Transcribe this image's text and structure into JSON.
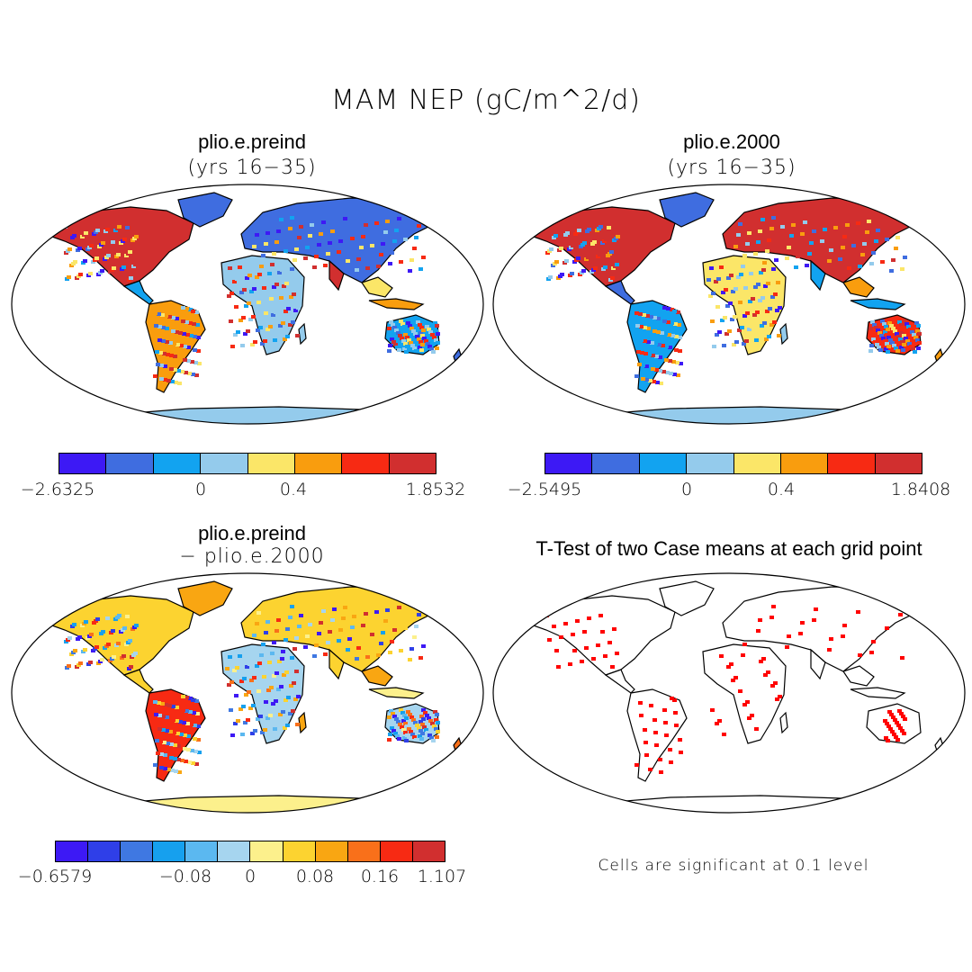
{
  "title": "MAM NEP (gC/m^2/d)",
  "panels": {
    "p1": {
      "title": "plio.e.preind",
      "subtitle": "(yrs 16−35)"
    },
    "p2": {
      "title": "plio.e.2000",
      "subtitle": "(yrs 16−35)"
    },
    "p3": {
      "title": "plio.e.preind",
      "subtitle": "− plio.e.2000"
    },
    "p4": {
      "title": "T-Test of two Case means at each grid point",
      "note": "Cells are significant at 0.1 level"
    }
  },
  "colorbars": {
    "cb1": {
      "colors": [
        "#3d19f5",
        "#3f6de0",
        "#12a3f0",
        "#94cbec",
        "#fbe668",
        "#f99d0e",
        "#f72a13",
        "#d12f2f"
      ],
      "labels": [
        "−2.6325",
        "0",
        "0.4",
        "1.8532"
      ]
    },
    "cb2": {
      "colors": [
        "#3d19f5",
        "#3f6de0",
        "#12a3f0",
        "#94cbec",
        "#fbe668",
        "#f99d0e",
        "#f72a13",
        "#d12f2f"
      ],
      "labels": [
        "−2.5495",
        "0",
        "0.4",
        "1.8408"
      ]
    },
    "cb3": {
      "colors": [
        "#3d19f5",
        "#2f3fe8",
        "#3f78e2",
        "#16a0ee",
        "#5bb8f0",
        "#a6d5ef",
        "#fcf08c",
        "#fcd330",
        "#f9a612",
        "#f9701a",
        "#f72a13",
        "#d12f2f"
      ],
      "labels": [
        "−0.6579",
        "−0.08",
        "0",
        "0.08",
        "0.16",
        "1.107"
      ]
    }
  },
  "significance_color": "#ff0000"
}
